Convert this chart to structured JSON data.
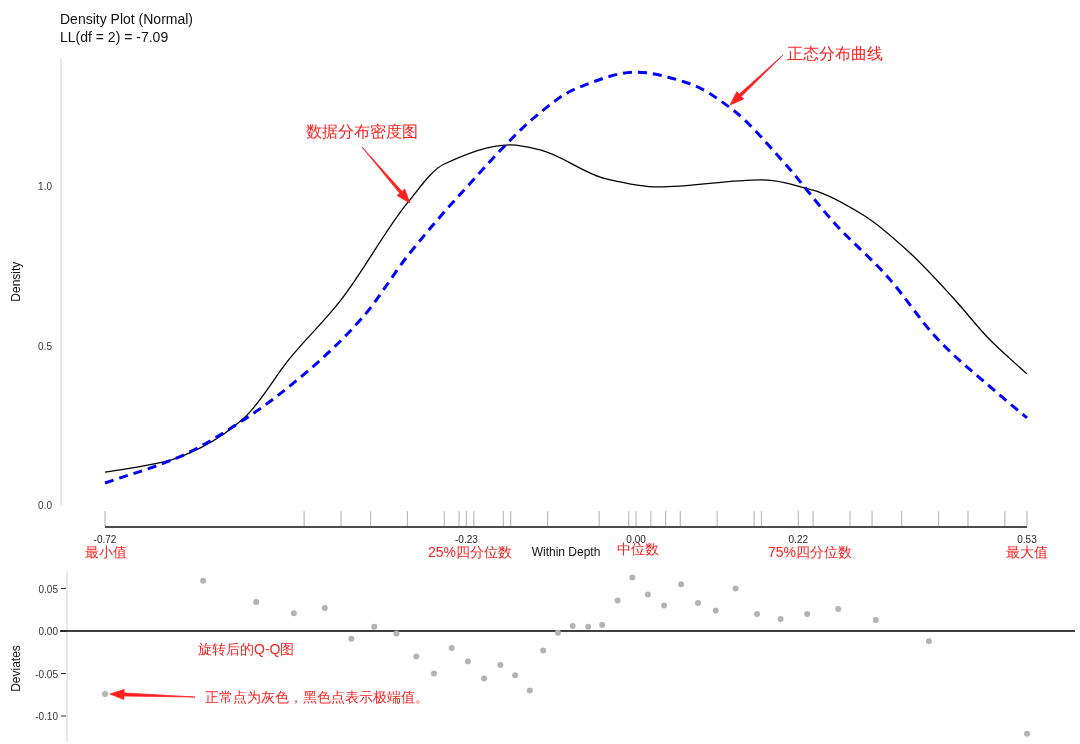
{
  "chart_data": [
    {
      "type": "line",
      "title": "Density Plot (Normal)",
      "subtitle": "LL(df = 2) = -7.09",
      "xlabel": "Within Depth",
      "ylabel": "Density",
      "xlim": [
        -0.72,
        0.53
      ],
      "ylim": [
        0,
        1.4
      ],
      "xticks": [
        -0.72,
        {
          "value": -0.45,
          "label": null
        },
        {
          "value": -0.4,
          "label": null
        },
        {
          "value": -0.36,
          "label": null
        },
        {
          "value": -0.31,
          "label": null
        },
        {
          "value": -0.26,
          "label": null
        },
        {
          "value": -0.24,
          "label": null
        },
        -0.23,
        {
          "value": -0.22,
          "label": null
        },
        {
          "value": -0.18,
          "label": null
        },
        {
          "value": -0.17,
          "label": null
        },
        {
          "value": -0.12,
          "label": null
        },
        {
          "value": -0.05,
          "label": null
        },
        {
          "value": -0.01,
          "label": null
        },
        {
          "value": 0,
          "label": "0.00"
        },
        {
          "value": 0.02,
          "label": null
        },
        {
          "value": 0.04,
          "label": null
        },
        {
          "value": 0.06,
          "label": null
        },
        {
          "value": 0.11,
          "label": null
        },
        {
          "value": 0.16,
          "label": null
        },
        {
          "value": 0.17,
          "label": null
        },
        0.22,
        {
          "value": 0.24,
          "label": null
        },
        {
          "value": 0.29,
          "label": null
        },
        {
          "value": 0.32,
          "label": null
        },
        {
          "value": 0.36,
          "label": null
        },
        {
          "value": 0.41,
          "label": null
        },
        {
          "value": 0.45,
          "label": null
        },
        {
          "value": 0.5,
          "label": null
        },
        0.53
      ],
      "yticks": [
        {
          "value": 0,
          "label": "0.0"
        },
        0.5,
        {
          "value": 1,
          "label": "1.0"
        }
      ],
      "series": [
        {
          "color": "#000000",
          "line_style": "solid",
          "x": [
            -0.72,
            -0.64,
            -0.59,
            -0.53,
            -0.47,
            -0.4,
            -0.31,
            -0.26,
            -0.17,
            -0.13,
            -0.04,
            0.03,
            0.17,
            0.24,
            0.31,
            0.37,
            0.43,
            0.48,
            0.53
          ],
          "values": [
            0.103,
            0.135,
            0.18,
            0.276,
            0.458,
            0.643,
            0.947,
            1.069,
            1.129,
            1.113,
            1.022,
            0.997,
            1.019,
            0.987,
            0.906,
            0.793,
            0.649,
            0.517,
            0.411
          ]
        },
        {
          "color": "#0000ff",
          "line_style": "dashed",
          "x": [
            -0.72,
            -0.62,
            -0.53,
            -0.45,
            -0.37,
            -0.31,
            -0.24,
            -0.13,
            -0.08,
            0.0,
            0.07,
            0.13,
            0.2,
            0.27,
            0.34,
            0.41,
            0.49,
            0.53
          ],
          "values": [
            0.069,
            0.15,
            0.27,
            0.41,
            0.59,
            0.78,
            0.97,
            1.23,
            1.307,
            1.357,
            1.323,
            1.241,
            1.075,
            0.881,
            0.718,
            0.517,
            0.351,
            0.273
          ]
        }
      ],
      "annotations": [
        "数据分布密度图",
        "正态分布曲线",
        "最小值",
        "25%四分位数",
        "中位数",
        "75%四分位数",
        "最大值"
      ]
    },
    {
      "type": "scatter",
      "ylabel": "Deviates",
      "marker": "circle",
      "color": "#b3b3b3",
      "tick_labels": "y",
      "xlim": [
        -0.72,
        0.53
      ],
      "ylim": [
        -0.13,
        0.07
      ],
      "yticks": [
        {
          "value": 0.05,
          "label": "0.05"
        },
        {
          "value": 0,
          "label": "0.00"
        },
        {
          "value": -0.05,
          "label": "-0.05"
        },
        {
          "value": -0.1,
          "label": "-0.10"
        }
      ],
      "x": [
        -0.72,
        -0.587,
        -0.515,
        -0.464,
        -0.422,
        -0.386,
        -0.355,
        -0.325,
        -0.298,
        -0.274,
        -0.25,
        -0.228,
        -0.206,
        -0.184,
        -0.164,
        -0.144,
        -0.126,
        -0.106,
        -0.086,
        -0.065,
        -0.046,
        -0.025,
        -0.005,
        0.016,
        0.038,
        0.061,
        0.084,
        0.108,
        0.135,
        0.164,
        0.196,
        0.232,
        0.274,
        0.325,
        0.397,
        0.53
      ],
      "values": [
        -0.074,
        0.059,
        0.034,
        0.021,
        0.027,
        -0.009,
        0.005,
        -0.003,
        -0.03,
        -0.05,
        -0.02,
        -0.036,
        -0.056,
        -0.04,
        -0.052,
        -0.07,
        -0.023,
        -0.002,
        0.006,
        0.005,
        0.007,
        0.036,
        0.063,
        0.043,
        0.03,
        0.055,
        0.033,
        0.024,
        0.05,
        0.02,
        0.014,
        0.02,
        0.026,
        0.013,
        -0.012,
        -0.121
      ],
      "ref_lines": [
        {
          "axis": "y",
          "value": 0
        }
      ],
      "annotations": [
        "旋转后的Q-Q图",
        "正常点为灰色，黑色点表示极端值。"
      ]
    }
  ]
}
